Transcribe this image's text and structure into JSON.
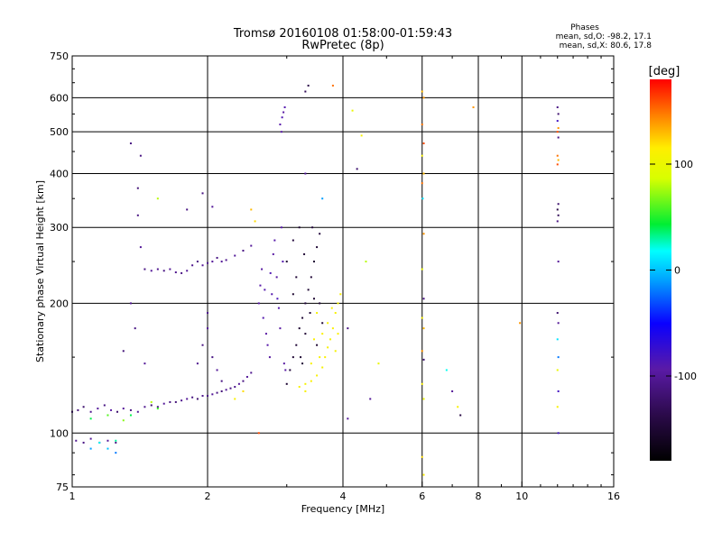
{
  "chart_data": {
    "type": "scatter",
    "title": "Tromsø 20160108 01:58:00-01:59:43",
    "subtitle": "RwPretec (8p)",
    "xlabel": "Frequency [MHz]",
    "ylabel": "Stationary phase Virtual Height [km]",
    "x_scale": "log",
    "y_scale": "log",
    "xlim": [
      1,
      16
    ],
    "ylim": [
      75,
      750
    ],
    "x_ticks": [
      1,
      2,
      4,
      6,
      8,
      10,
      16
    ],
    "x_tick_labels": [
      "1",
      "2",
      "4",
      "6",
      "8",
      "10",
      "16"
    ],
    "y_ticks": [
      75,
      100,
      200,
      300,
      400,
      500,
      600,
      750
    ],
    "y_tick_labels": [
      "75",
      "100",
      "200",
      "300",
      "400",
      "500",
      "600",
      "750"
    ],
    "grid": true,
    "stats": {
      "heading": "Phases",
      "line1": "mean, sd,O: -98.2, 17.1",
      "line2": "mean, sd,X:  80.6, 17.8"
    },
    "colorbar": {
      "label": "[deg]",
      "range": [
        -180,
        180
      ],
      "ticks": [
        100,
        0,
        -100
      ],
      "tick_labels": [
        "100",
        "0",
        "-100"
      ]
    },
    "series": [
      {
        "points": [
          [
            1.0,
            112,
            -110
          ],
          [
            1.03,
            113,
            -115
          ],
          [
            1.06,
            115,
            -120
          ],
          [
            1.1,
            112,
            -105
          ],
          [
            1.14,
            114,
            -100
          ],
          [
            1.18,
            116,
            -110
          ],
          [
            1.22,
            113,
            -95
          ],
          [
            1.26,
            112,
            -120
          ],
          [
            1.3,
            114,
            -100
          ],
          [
            1.35,
            113,
            -110
          ],
          [
            1.4,
            112,
            -100
          ],
          [
            1.45,
            115,
            -105
          ],
          [
            1.5,
            116,
            -120
          ],
          [
            1.55,
            115,
            -110
          ],
          [
            1.6,
            117,
            -100
          ],
          [
            1.65,
            118,
            -110
          ],
          [
            1.7,
            118,
            -115
          ],
          [
            1.75,
            119,
            -105
          ],
          [
            1.8,
            120,
            -100
          ],
          [
            1.85,
            121,
            -110
          ],
          [
            1.9,
            120,
            -120
          ],
          [
            1.95,
            122,
            -105
          ],
          [
            2.0,
            122,
            -110
          ],
          [
            2.05,
            123,
            -100
          ],
          [
            2.1,
            124,
            -110
          ],
          [
            2.15,
            125,
            -115
          ],
          [
            2.2,
            126,
            -100
          ],
          [
            2.25,
            127,
            -110
          ],
          [
            2.3,
            128,
            -105
          ],
          [
            2.35,
            130,
            -100
          ],
          [
            2.4,
            132,
            -110
          ],
          [
            2.45,
            135,
            -100
          ],
          [
            2.5,
            138,
            -105
          ],
          [
            1.02,
            96,
            -105
          ],
          [
            1.06,
            95,
            -110
          ],
          [
            1.1,
            97,
            -100
          ],
          [
            1.15,
            95,
            -90
          ],
          [
            1.2,
            96,
            -100
          ],
          [
            1.25,
            95,
            -110
          ],
          [
            1.45,
            240,
            -110
          ],
          [
            1.5,
            238,
            -100
          ],
          [
            1.55,
            240,
            -105
          ],
          [
            1.6,
            238,
            -110
          ],
          [
            1.65,
            240,
            -100
          ],
          [
            1.7,
            236,
            -105
          ],
          [
            1.75,
            235,
            -110
          ],
          [
            1.8,
            238,
            -100
          ],
          [
            1.85,
            245,
            -105
          ],
          [
            1.9,
            250,
            -110
          ],
          [
            1.95,
            245,
            -100
          ],
          [
            2.0,
            248,
            -105
          ],
          [
            2.05,
            250,
            -100
          ],
          [
            2.1,
            255,
            -110
          ],
          [
            2.15,
            250,
            -100
          ],
          [
            2.2,
            252,
            -105
          ],
          [
            2.3,
            258,
            -100
          ],
          [
            2.4,
            265,
            -110
          ],
          [
            2.5,
            272,
            -100
          ],
          [
            1.9,
            145,
            -105
          ],
          [
            1.95,
            160,
            -110
          ],
          [
            2.0,
            175,
            -100
          ],
          [
            2.0,
            190,
            -105
          ],
          [
            2.05,
            150,
            -110
          ],
          [
            2.1,
            140,
            -100
          ],
          [
            2.15,
            132,
            -110
          ],
          [
            2.6,
            200,
            -95
          ],
          [
            2.62,
            220,
            -92
          ],
          [
            2.64,
            240,
            -96
          ],
          [
            2.66,
            185,
            -90
          ],
          [
            2.7,
            170,
            -95
          ],
          [
            2.72,
            160,
            -92
          ],
          [
            2.75,
            150,
            -96
          ],
          [
            2.78,
            210,
            -90
          ],
          [
            2.8,
            260,
            -95
          ],
          [
            2.82,
            280,
            -92
          ],
          [
            2.85,
            230,
            -96
          ],
          [
            2.88,
            195,
            -90
          ],
          [
            2.9,
            175,
            -95
          ],
          [
            2.92,
            300,
            -92
          ],
          [
            2.94,
            250,
            -90
          ],
          [
            2.96,
            145,
            -96
          ],
          [
            2.98,
            140,
            -95
          ],
          [
            2.86,
            205,
            -85
          ],
          [
            2.76,
            235,
            -88
          ],
          [
            2.68,
            215,
            -90
          ],
          [
            2.9,
            520,
            -92
          ],
          [
            2.93,
            540,
            -88
          ],
          [
            2.95,
            555,
            -95
          ],
          [
            2.97,
            570,
            -90
          ],
          [
            2.92,
            500,
            -93
          ],
          [
            3.0,
            130,
            -150
          ],
          [
            3.05,
            140,
            -145
          ],
          [
            3.1,
            150,
            -150
          ],
          [
            3.15,
            160,
            -148
          ],
          [
            3.2,
            175,
            -152
          ],
          [
            3.25,
            185,
            -150
          ],
          [
            3.3,
            200,
            -145
          ],
          [
            3.35,
            215,
            -150
          ],
          [
            3.4,
            230,
            -148
          ],
          [
            3.45,
            250,
            -152
          ],
          [
            3.5,
            270,
            -150
          ],
          [
            3.55,
            290,
            -145
          ],
          [
            3.3,
            170,
            -150
          ],
          [
            3.38,
            190,
            -148
          ],
          [
            3.45,
            205,
            -152
          ],
          [
            3.22,
            150,
            -150
          ],
          [
            3.15,
            230,
            -148
          ],
          [
            3.28,
            260,
            -150
          ],
          [
            3.42,
            300,
            -145
          ],
          [
            3.1,
            210,
            -152
          ],
          [
            3.55,
            200,
            -150
          ],
          [
            3.6,
            180,
            -148
          ],
          [
            3.5,
            160,
            -152
          ],
          [
            3.25,
            145,
            -150
          ],
          [
            3.0,
            250,
            -150
          ],
          [
            3.1,
            280,
            -145
          ],
          [
            3.2,
            300,
            -150
          ],
          [
            3.2,
            128,
            110
          ],
          [
            3.3,
            130,
            108
          ],
          [
            3.4,
            132,
            112
          ],
          [
            3.5,
            136,
            110
          ],
          [
            3.6,
            142,
            108
          ],
          [
            3.65,
            150,
            112
          ],
          [
            3.7,
            158,
            110
          ],
          [
            3.75,
            165,
            108
          ],
          [
            3.8,
            175,
            112
          ],
          [
            3.85,
            190,
            110
          ],
          [
            3.9,
            200,
            108
          ],
          [
            3.95,
            210,
            112
          ],
          [
            3.7,
            180,
            110
          ],
          [
            3.78,
            195,
            108
          ],
          [
            3.6,
            170,
            112
          ],
          [
            3.55,
            150,
            110
          ],
          [
            3.5,
            190,
            108
          ],
          [
            3.45,
            165,
            112
          ],
          [
            3.4,
            145,
            110
          ],
          [
            3.85,
            155,
            108
          ],
          [
            3.9,
            170,
            112
          ],
          [
            3.3,
            125,
            110
          ],
          [
            1.1,
            108,
            40
          ],
          [
            1.2,
            110,
            60
          ],
          [
            1.3,
            107,
            70
          ],
          [
            1.35,
            110,
            40
          ],
          [
            1.5,
            118,
            80
          ],
          [
            1.55,
            114,
            55
          ],
          [
            1.25,
            96,
            30
          ],
          [
            1.15,
            95,
            20
          ],
          [
            1.2,
            92,
            0
          ],
          [
            1.1,
            92,
            -10
          ],
          [
            1.25,
            90,
            -20
          ],
          [
            1.42,
            270,
            -100
          ],
          [
            1.4,
            320,
            -110
          ],
          [
            1.35,
            470,
            -110
          ],
          [
            1.42,
            440,
            -110
          ],
          [
            1.4,
            370,
            -115
          ],
          [
            1.35,
            200,
            -105
          ],
          [
            1.38,
            175,
            -110
          ],
          [
            1.45,
            145,
            -100
          ],
          [
            1.3,
            155,
            -115
          ],
          [
            1.8,
            330,
            -110
          ],
          [
            1.95,
            360,
            -110
          ],
          [
            2.05,
            335,
            -100
          ],
          [
            2.5,
            330,
            130
          ],
          [
            2.55,
            310,
            120
          ],
          [
            1.55,
            350,
            80
          ],
          [
            2.4,
            125,
            120
          ],
          [
            2.6,
            100,
            160
          ],
          [
            2.3,
            120,
            110
          ],
          [
            4.1,
            175,
            -110
          ],
          [
            4.1,
            108,
            -100
          ],
          [
            4.3,
            410,
            -120
          ],
          [
            3.3,
            400,
            -100
          ],
          [
            3.6,
            350,
            -10
          ],
          [
            3.3,
            620,
            -130
          ],
          [
            3.35,
            640,
            -140
          ],
          [
            3.8,
            640,
            150
          ],
          [
            4.2,
            560,
            100
          ],
          [
            4.4,
            490,
            110
          ],
          [
            4.5,
            250,
            80
          ],
          [
            4.6,
            120,
            -100
          ],
          [
            4.8,
            145,
            100
          ],
          [
            6.0,
            620,
            130
          ],
          [
            6.05,
            600,
            140
          ],
          [
            6.0,
            520,
            150
          ],
          [
            6.05,
            470,
            160
          ],
          [
            6.0,
            440,
            110
          ],
          [
            6.05,
            400,
            130
          ],
          [
            6.0,
            380,
            150
          ],
          [
            6.02,
            350,
            10
          ],
          [
            6.05,
            290,
            140
          ],
          [
            6.0,
            240,
            100
          ],
          [
            6.05,
            205,
            -110
          ],
          [
            6.0,
            185,
            110
          ],
          [
            6.05,
            175,
            130
          ],
          [
            6.0,
            155,
            140
          ],
          [
            6.05,
            148,
            -120
          ],
          [
            6.0,
            130,
            110
          ],
          [
            6.05,
            120,
            100
          ],
          [
            6.0,
            88,
            120
          ],
          [
            6.05,
            80,
            115
          ],
          [
            6.8,
            140,
            20
          ],
          [
            7.0,
            125,
            -100
          ],
          [
            7.2,
            115,
            110
          ],
          [
            7.3,
            110,
            -140
          ],
          [
            7.8,
            570,
            140
          ],
          [
            9.9,
            180,
            140
          ],
          [
            12.0,
            570,
            -110
          ],
          [
            12.05,
            550,
            -120
          ],
          [
            12.0,
            530,
            -80
          ],
          [
            12.05,
            510,
            140
          ],
          [
            12.0,
            500,
            160
          ],
          [
            12.05,
            485,
            -110
          ],
          [
            12.0,
            440,
            150
          ],
          [
            12.05,
            430,
            130
          ],
          [
            12.0,
            420,
            160
          ],
          [
            12.05,
            340,
            -120
          ],
          [
            12.0,
            330,
            -140
          ],
          [
            12.05,
            320,
            -130
          ],
          [
            12.0,
            310,
            -110
          ],
          [
            12.05,
            250,
            -100
          ],
          [
            12.0,
            190,
            -120
          ],
          [
            12.05,
            180,
            -100
          ],
          [
            12.0,
            165,
            10
          ],
          [
            12.05,
            150,
            -20
          ],
          [
            12.0,
            140,
            100
          ],
          [
            12.05,
            125,
            -80
          ],
          [
            12.0,
            115,
            110
          ],
          [
            12.05,
            100,
            -80
          ]
        ]
      }
    ]
  }
}
